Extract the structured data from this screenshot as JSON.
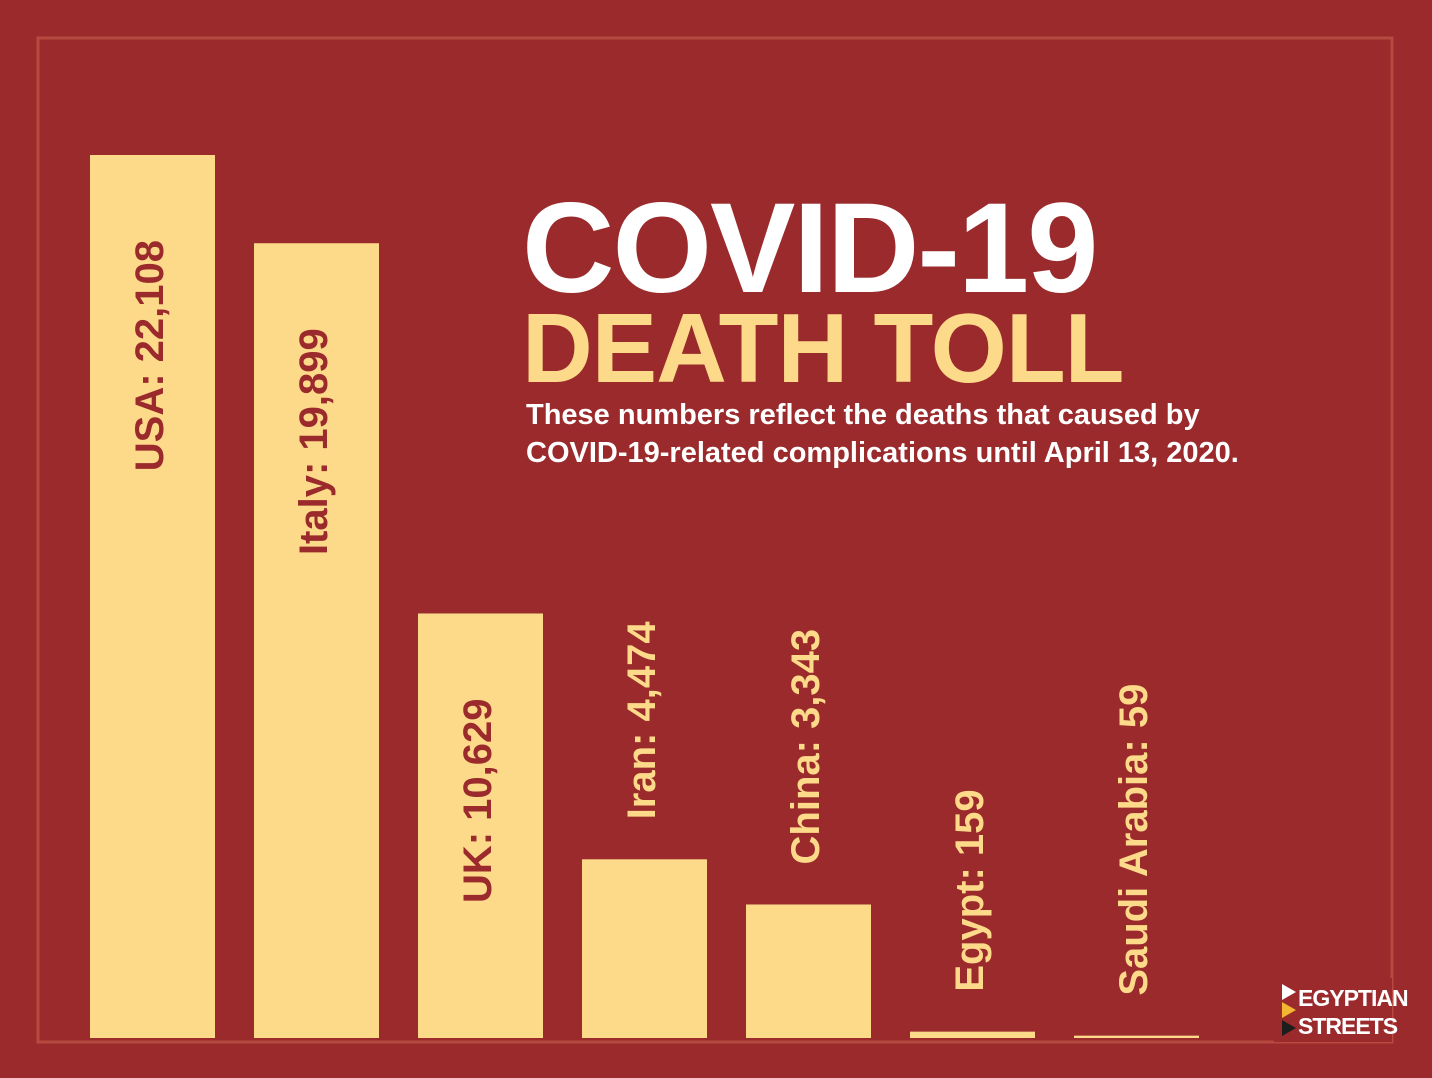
{
  "chart_data": {
    "type": "bar",
    "title": "COVID-19",
    "subtitle": "DEATH TOLL",
    "description": [
      "These numbers reflect the deaths that caused by",
      "COVID-19-related complications until April 13, 2020."
    ],
    "values": [
      22108,
      19899,
      10629,
      4474,
      3343,
      159,
      59
    ],
    "value_labels": [
      "USA: 22,108",
      "Italy: 19,899",
      "UK: 10,629",
      "Iran: 4,474",
      "China: 3,343",
      "Egypt: 159",
      "Saudi Arabia: 59"
    ],
    "color": "#fdd98a",
    "background": "#9b2a2c",
    "grid": false
  },
  "branding": {
    "line1": "EGYPTIAN",
    "line2": "STREETS"
  }
}
